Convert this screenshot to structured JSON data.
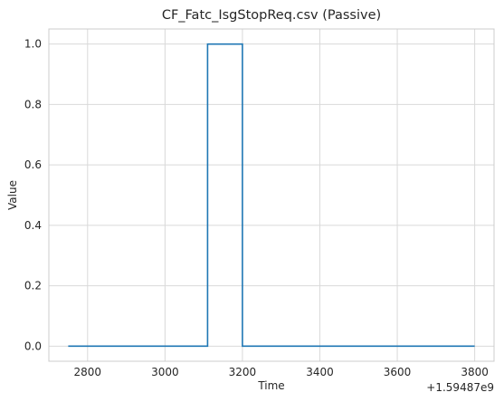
{
  "chart_data": {
    "type": "line",
    "title": "CF_Fatc_IsgStopReq.csv (Passive)",
    "xlabel": "Time",
    "ylabel": "Value",
    "x_offset_label": "+1.59487e9",
    "x_ticks": [
      2800,
      3000,
      3200,
      3400,
      3600,
      3800
    ],
    "x_tick_labels": [
      "2800",
      "3000",
      "3200",
      "3400",
      "3600",
      "3800"
    ],
    "y_ticks": [
      0.0,
      0.2,
      0.4,
      0.6,
      0.8,
      1.0
    ],
    "y_tick_labels": [
      "0.0",
      "0.2",
      "0.4",
      "0.6",
      "0.8",
      "1.0"
    ],
    "xlim": [
      2700,
      3850
    ],
    "ylim": [
      -0.05,
      1.05
    ],
    "grid": true,
    "series": [
      {
        "color": "#1f77b4",
        "step": "post",
        "x": [
          2750,
          3110,
          3110,
          3200,
          3200,
          3800
        ],
        "y": [
          0,
          0,
          1,
          1,
          0,
          0
        ]
      }
    ]
  }
}
